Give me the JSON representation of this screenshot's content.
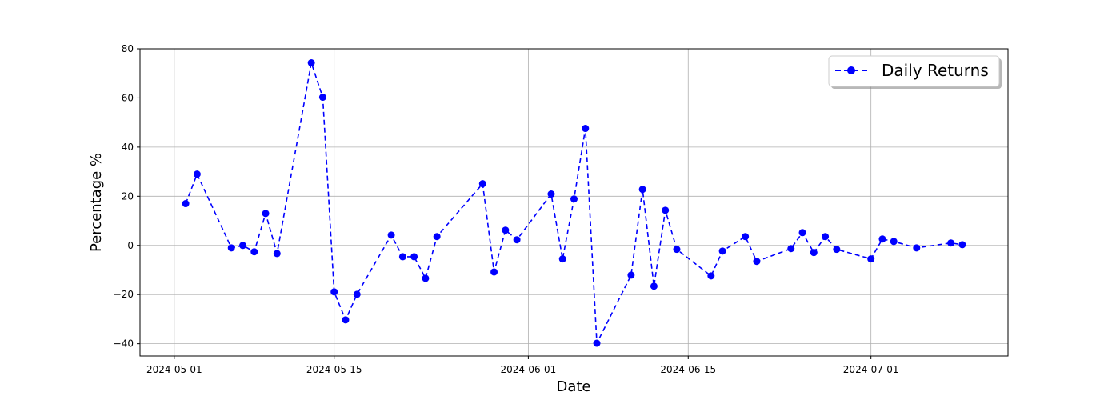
{
  "chart_data": {
    "type": "line",
    "title": "",
    "xlabel": "Date",
    "ylabel": "Percentage %",
    "xlim": [
      "2024-04-28",
      "2024-07-13"
    ],
    "ylim": [
      -45,
      80
    ],
    "grid": true,
    "legend_placement": "top-right",
    "x_ticks": [
      "2024-05-01",
      "2024-05-15",
      "2024-06-01",
      "2024-06-15",
      "2024-07-01"
    ],
    "y_ticks": [
      -40,
      -20,
      0,
      20,
      40,
      60,
      80
    ],
    "series": [
      {
        "name": "Daily Returns",
        "color": "#0000ff",
        "style": "dashed-with-circle-markers",
        "x": [
          "2024-05-02",
          "2024-05-03",
          "2024-05-06",
          "2024-05-07",
          "2024-05-08",
          "2024-05-09",
          "2024-05-10",
          "2024-05-13",
          "2024-05-14",
          "2024-05-15",
          "2024-05-16",
          "2024-05-17",
          "2024-05-20",
          "2024-05-21",
          "2024-05-22",
          "2024-05-23",
          "2024-05-24",
          "2024-05-28",
          "2024-05-29",
          "2024-05-30",
          "2024-05-31",
          "2024-06-03",
          "2024-06-04",
          "2024-06-05",
          "2024-06-06",
          "2024-06-07",
          "2024-06-10",
          "2024-06-11",
          "2024-06-12",
          "2024-06-13",
          "2024-06-14",
          "2024-06-17",
          "2024-06-18",
          "2024-06-20",
          "2024-06-21",
          "2024-06-24",
          "2024-06-25",
          "2024-06-26",
          "2024-06-27",
          "2024-06-28",
          "2024-07-01",
          "2024-07-02",
          "2024-07-03",
          "2024-07-05",
          "2024-07-08",
          "2024-07-09"
        ],
        "y": [
          17.0,
          29.0,
          -1.0,
          0.0,
          -2.6,
          13.0,
          -3.3,
          74.3,
          60.3,
          -18.9,
          -30.3,
          -19.9,
          4.2,
          -4.6,
          -4.6,
          -13.4,
          3.6,
          25.1,
          -10.8,
          6.2,
          2.3,
          20.9,
          -5.5,
          18.9,
          47.6,
          -39.8,
          -12.1,
          22.8,
          -16.6,
          14.3,
          -1.6,
          -12.4,
          -2.3,
          3.6,
          -6.5,
          -1.3,
          5.2,
          -2.9,
          3.6,
          -1.6,
          -5.5,
          2.6,
          1.6,
          -1.0,
          1.0,
          0.3
        ]
      }
    ]
  }
}
